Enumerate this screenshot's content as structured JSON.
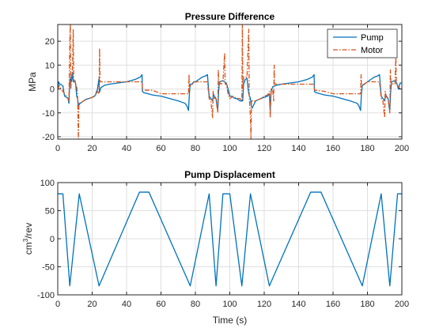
{
  "chart_data": [
    {
      "type": "line",
      "title": "Pressure Difference",
      "xlabel": "",
      "ylabel": "MPa",
      "xlim": [
        0,
        200
      ],
      "ylim": [
        -21,
        27
      ],
      "xticks": [
        "0",
        "20",
        "40",
        "60",
        "80",
        "100",
        "120",
        "140",
        "160",
        "180",
        "200"
      ],
      "yticks": [
        "-20",
        "-10",
        "0",
        "10",
        "20"
      ],
      "grid": true,
      "legend": "top-right",
      "series": [
        {
          "name": "Pump",
          "color": "#0072BD",
          "style": "solid",
          "points": [
            [
              0,
              0
            ],
            [
              0.5,
              3
            ],
            [
              1,
              2.2
            ],
            [
              2,
              1.8
            ],
            [
              3,
              1.3
            ],
            [
              3.5,
              -1
            ],
            [
              4,
              -3
            ],
            [
              5,
              -3.5
            ],
            [
              6,
              -4
            ],
            [
              6.5,
              -6
            ],
            [
              7,
              3
            ],
            [
              7.5,
              5
            ],
            [
              8,
              3
            ],
            [
              8.5,
              7
            ],
            [
              9,
              3
            ],
            [
              10,
              3.5
            ],
            [
              10.5,
              1.5
            ],
            [
              11,
              -3
            ],
            [
              11.5,
              -4
            ],
            [
              12,
              -7
            ],
            [
              13,
              -6
            ],
            [
              14,
              -5.5
            ],
            [
              15,
              -5
            ],
            [
              16,
              -4.5
            ],
            [
              17,
              -4.2
            ],
            [
              18,
              -4
            ],
            [
              19,
              -3.8
            ],
            [
              20,
              -3.5
            ],
            [
              21,
              -3.2
            ],
            [
              22,
              -2.5
            ],
            [
              22.5,
              -1
            ],
            [
              23,
              -0.5
            ],
            [
              24,
              4.5
            ],
            [
              24.2,
              -1.5
            ],
            [
              25,
              0.5
            ],
            [
              27,
              1.5
            ],
            [
              30,
              2
            ],
            [
              35,
              2.5
            ],
            [
              40,
              3
            ],
            [
              45,
              4
            ],
            [
              48,
              5
            ],
            [
              49,
              6
            ],
            [
              49.2,
              -1
            ],
            [
              50,
              -1.5
            ],
            [
              55,
              -2.5
            ],
            [
              60,
              -3
            ],
            [
              65,
              -4
            ],
            [
              70,
              -5
            ],
            [
              74,
              -6
            ],
            [
              75,
              -7
            ],
            [
              76,
              -9
            ],
            [
              76.5,
              -2
            ],
            [
              77,
              2
            ],
            [
              78,
              2
            ],
            [
              79,
              3
            ],
            [
              80,
              3
            ],
            [
              82,
              4
            ],
            [
              84,
              5
            ],
            [
              86,
              5.5
            ],
            [
              87,
              6
            ],
            [
              88,
              -3
            ],
            [
              89,
              -4
            ],
            [
              90,
              -5
            ],
            [
              90.5,
              -2
            ],
            [
              91,
              -3
            ],
            [
              92,
              -4
            ],
            [
              92.5,
              -7
            ],
            [
              93,
              -9
            ],
            [
              93.5,
              -1
            ],
            [
              94,
              3
            ],
            [
              96,
              3.5
            ],
            [
              98,
              2.5
            ],
            [
              99,
              0
            ],
            [
              100,
              -3
            ],
            [
              101,
              -3
            ],
            [
              102,
              -3.5
            ],
            [
              103,
              -4
            ],
            [
              104,
              -4
            ],
            [
              105,
              -4.5
            ],
            [
              106,
              -5
            ],
            [
              107,
              -5
            ],
            [
              107.5,
              -5
            ],
            [
              108,
              2
            ],
            [
              109,
              4
            ],
            [
              110,
              4.5
            ],
            [
              110.5,
              1
            ],
            [
              111,
              -2
            ],
            [
              112,
              -4
            ],
            [
              112.5,
              -7
            ],
            [
              113,
              -8
            ],
            [
              115,
              -5
            ],
            [
              118,
              -4
            ],
            [
              120,
              -3.5
            ],
            [
              122,
              -3
            ],
            [
              123,
              -2
            ],
            [
              123.5,
              -9
            ],
            [
              124,
              -1
            ],
            [
              125,
              1
            ],
            [
              127,
              1.5
            ],
            [
              130,
              2
            ],
            [
              135,
              2.5
            ],
            [
              140,
              3
            ],
            [
              145,
              4
            ],
            [
              148,
              5
            ],
            [
              149,
              6
            ],
            [
              149.2,
              -1
            ],
            [
              150,
              -1.5
            ],
            [
              155,
              -2.5
            ],
            [
              160,
              -3
            ],
            [
              165,
              -4
            ],
            [
              170,
              -5
            ],
            [
              174,
              -6
            ],
            [
              175,
              -7
            ],
            [
              176,
              -9
            ],
            [
              176.5,
              -2
            ],
            [
              177,
              1.5
            ],
            [
              178,
              2
            ],
            [
              180,
              3
            ],
            [
              182,
              4
            ],
            [
              184,
              5
            ],
            [
              186,
              5.5
            ],
            [
              187,
              6
            ],
            [
              188,
              -3
            ],
            [
              189,
              -4
            ],
            [
              190,
              -5
            ],
            [
              190.5,
              -2
            ],
            [
              191,
              -3
            ],
            [
              192,
              -4
            ],
            [
              192.5,
              -7
            ],
            [
              193,
              -9
            ],
            [
              193.5,
              -1
            ],
            [
              194,
              3
            ],
            [
              196,
              3.5
            ],
            [
              197,
              2.5
            ],
            [
              198,
              0
            ],
            [
              199,
              2.5
            ],
            [
              200,
              2.5
            ]
          ]
        },
        {
          "name": "Motor",
          "color": "#D95319",
          "style": "dashdot",
          "points": [
            [
              0,
              0
            ],
            [
              1,
              1.5
            ],
            [
              2,
              0
            ],
            [
              3,
              -1
            ],
            [
              4,
              -2
            ],
            [
              5,
              -3
            ],
            [
              6,
              -4
            ],
            [
              6.5,
              -5
            ],
            [
              7,
              20
            ],
            [
              7.3,
              27
            ],
            [
              7.6,
              0
            ],
            [
              8,
              5
            ],
            [
              8.5,
              7
            ],
            [
              9,
              25
            ],
            [
              9.3,
              3
            ],
            [
              10,
              3
            ],
            [
              11,
              1
            ],
            [
              11.5,
              -2
            ],
            [
              12,
              -21
            ],
            [
              12.3,
              -6
            ],
            [
              13,
              -6
            ],
            [
              15,
              -5
            ],
            [
              18,
              -4
            ],
            [
              20,
              -3.5
            ],
            [
              22,
              -2.5
            ],
            [
              23,
              -1
            ],
            [
              24,
              -2
            ],
            [
              24.3,
              17
            ],
            [
              24.6,
              3
            ],
            [
              26,
              3
            ],
            [
              30,
              3
            ],
            [
              40,
              3
            ],
            [
              45,
              3
            ],
            [
              48,
              3
            ],
            [
              49,
              3
            ],
            [
              49.3,
              -0.5
            ],
            [
              55,
              -0.5
            ],
            [
              60,
              -2
            ],
            [
              70,
              -2
            ],
            [
              75,
              -2
            ],
            [
              76,
              -2
            ],
            [
              76.3,
              6
            ],
            [
              76.6,
              1
            ],
            [
              80,
              3
            ],
            [
              85,
              3
            ],
            [
              87,
              3
            ],
            [
              88,
              -4
            ],
            [
              89,
              -5
            ],
            [
              90,
              -12
            ],
            [
              90.3,
              -1
            ],
            [
              91,
              -4
            ],
            [
              92,
              -4
            ],
            [
              92.5,
              -7
            ],
            [
              93,
              -10
            ],
            [
              93.3,
              8
            ],
            [
              93.6,
              3
            ],
            [
              95,
              2
            ],
            [
              96,
              3
            ],
            [
              97,
              15
            ],
            [
              97.3,
              2
            ],
            [
              98,
              2
            ],
            [
              99,
              -2
            ],
            [
              100,
              -4
            ],
            [
              102,
              -3
            ],
            [
              104,
              -4
            ],
            [
              106,
              -4
            ],
            [
              107,
              -5
            ],
            [
              107.3,
              27
            ],
            [
              107.6,
              0
            ],
            [
              108,
              5
            ],
            [
              109,
              5
            ],
            [
              110,
              5
            ],
            [
              111,
              25
            ],
            [
              111.3,
              -3
            ],
            [
              112,
              -12
            ],
            [
              112.3,
              -21
            ],
            [
              112.6,
              -5
            ],
            [
              115,
              -5
            ],
            [
              118,
              -4
            ],
            [
              120,
              -3
            ],
            [
              122,
              -2.5
            ],
            [
              123,
              -1
            ],
            [
              123.5,
              -12
            ],
            [
              124,
              0
            ],
            [
              125,
              -1
            ],
            [
              125.5,
              -5
            ],
            [
              125.8,
              10
            ],
            [
              126,
              2
            ],
            [
              130,
              2
            ],
            [
              140,
              2
            ],
            [
              145,
              2
            ],
            [
              149,
              2
            ],
            [
              149.3,
              -0.5
            ],
            [
              155,
              -1
            ],
            [
              160,
              -2
            ],
            [
              170,
              -2
            ],
            [
              175,
              -2
            ],
            [
              176,
              -2
            ],
            [
              176.3,
              6
            ],
            [
              176.6,
              1
            ],
            [
              180,
              3
            ],
            [
              185,
              3
            ],
            [
              187,
              3
            ],
            [
              188,
              -4
            ],
            [
              189,
              -5
            ],
            [
              190,
              -12
            ],
            [
              190.3,
              -1
            ],
            [
              191,
              -4
            ],
            [
              192,
              -4
            ],
            [
              192.5,
              -7
            ],
            [
              193,
              -10
            ],
            [
              193.3,
              8
            ],
            [
              193.6,
              3
            ],
            [
              195,
              2
            ],
            [
              196,
              2
            ],
            [
              196.5,
              15
            ],
            [
              196.8,
              2
            ],
            [
              198,
              1
            ],
            [
              199,
              0
            ],
            [
              200,
              0
            ]
          ]
        }
      ]
    },
    {
      "type": "line",
      "title": "Pump Displacement",
      "xlabel": "Time (s)",
      "ylabel": "cm",
      "ylabel_sup": "3",
      "ylabel_suffix": "/rev",
      "xlim": [
        0,
        200
      ],
      "ylim": [
        -100,
        100
      ],
      "xticks": [
        "0",
        "20",
        "40",
        "60",
        "80",
        "100",
        "120",
        "140",
        "160",
        "180",
        "200"
      ],
      "yticks": [
        "-100",
        "-50",
        "0",
        "50",
        "100"
      ],
      "grid": true,
      "series": [
        {
          "color": "#0072BD",
          "style": "solid",
          "points": [
            [
              0,
              80
            ],
            [
              3,
              80
            ],
            [
              7,
              -84
            ],
            [
              12.5,
              80
            ],
            [
              24,
              -84
            ],
            [
              47.5,
              83
            ],
            [
              53,
              83
            ],
            [
              77,
              -84
            ],
            [
              88,
              80
            ],
            [
              92,
              -84
            ],
            [
              96,
              80
            ],
            [
              100,
              80
            ],
            [
              107,
              -84
            ],
            [
              112,
              80
            ],
            [
              123,
              -84
            ],
            [
              147,
              83
            ],
            [
              153,
              83
            ],
            [
              177,
              -84
            ],
            [
              188,
              80
            ],
            [
              193,
              -84
            ],
            [
              197.5,
              80
            ],
            [
              200,
              80
            ]
          ]
        }
      ]
    }
  ]
}
